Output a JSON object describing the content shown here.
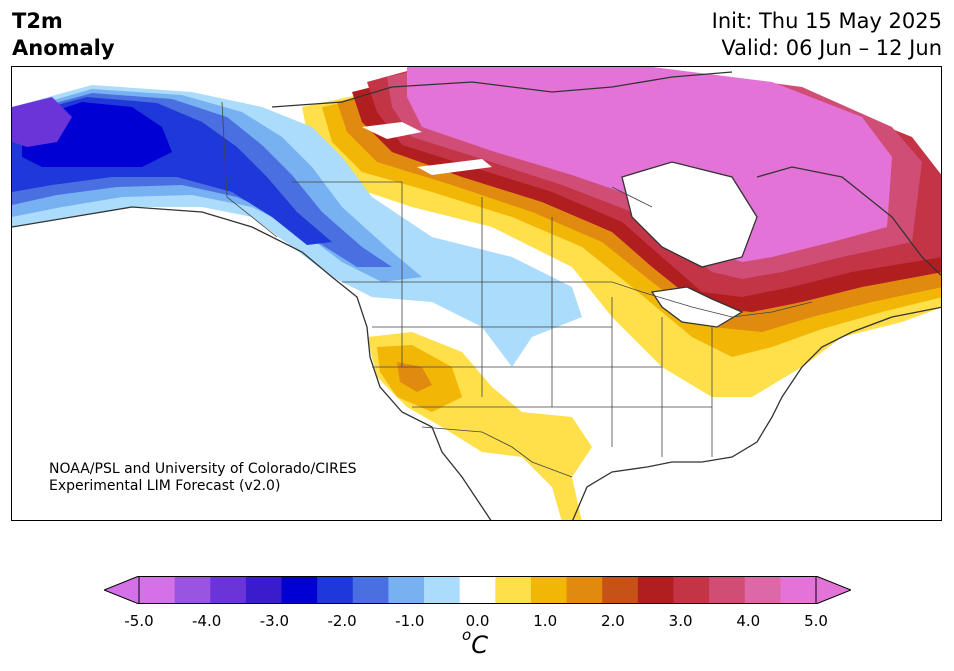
{
  "title": {
    "variable_line1": "T2m",
    "variable_line2": "Anomaly",
    "init": "Init: Thu 15 May 2025",
    "valid": "Valid: 06 Jun – 12 Jun"
  },
  "credit": {
    "line1": "NOAA/PSL and University of Colorado/CIRES",
    "line2": "Experimental LIM Forecast (v2.0)"
  },
  "colorbar": {
    "units_sup": "o",
    "units_main": "C",
    "ticks": [
      "-5.0",
      "-4.0",
      "-3.0",
      "-2.0",
      "-1.0",
      "0.0",
      "1.0",
      "2.0",
      "3.0",
      "4.0",
      "5.0"
    ],
    "levels": [
      -5.0,
      -4.5,
      -4.0,
      -3.5,
      -3.0,
      -2.5,
      -2.0,
      -1.5,
      -1.0,
      -0.5,
      0.5,
      1.0,
      1.5,
      2.0,
      2.5,
      3.0,
      3.5,
      4.0,
      4.5,
      5.0
    ],
    "colors": [
      "#d571e8",
      "#9a55e0",
      "#6b34d9",
      "#3a1ccd",
      "#0000d4",
      "#1f38da",
      "#4a6fe0",
      "#77b1f2",
      "#abdcfc",
      "#ffffff",
      "#ffe04a",
      "#f2b706",
      "#e08a10",
      "#c65218",
      "#b01e20",
      "#c23446",
      "#d04e75",
      "#dc68a8",
      "#e473d8"
    ],
    "extend_low": "#d571e8",
    "extend_high": "#e473d8"
  }
}
